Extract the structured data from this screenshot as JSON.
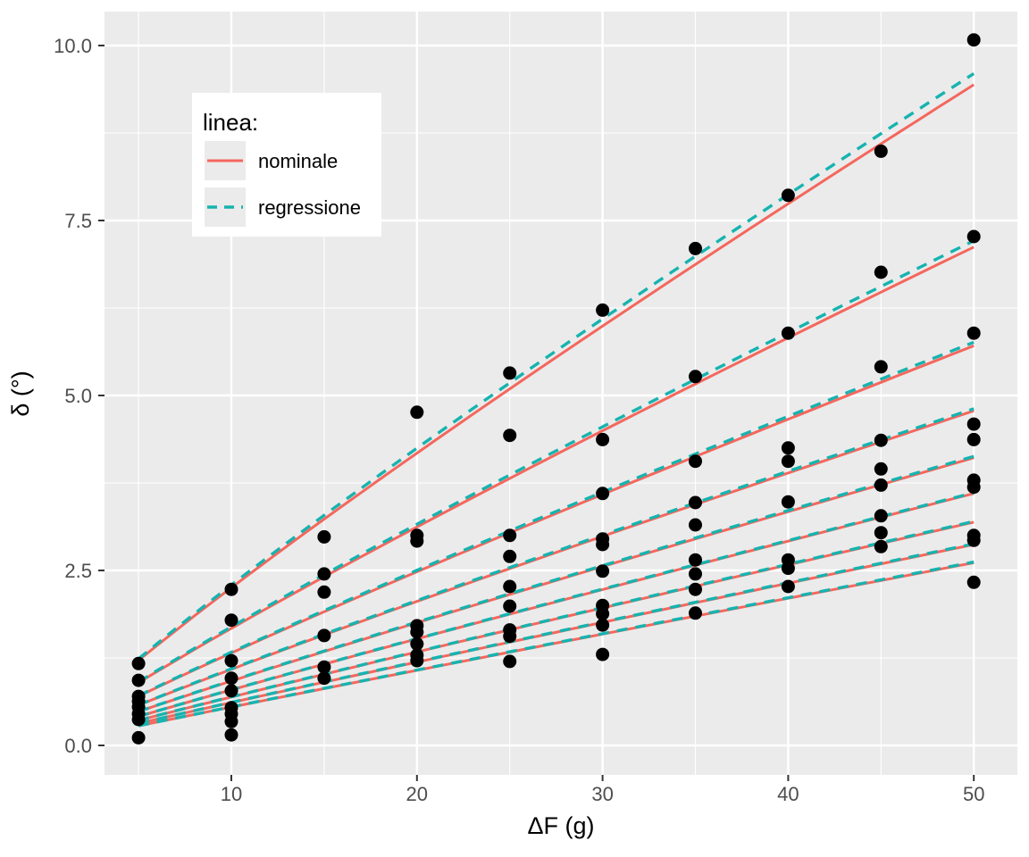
{
  "figure": {
    "background": "#FFFFFF",
    "panel_background": "#EBEBEB",
    "grid_color": "#FFFFFF",
    "axis_text_color": "#4D4D4D",
    "axis_title_color": "#000000",
    "tick_mark_color": "#333333",
    "point_color": "#000000"
  },
  "chart_data": {
    "type": "scatter+line",
    "title": "",
    "xlabel": "ΔF (g)",
    "ylabel": "δ (°)",
    "grid": "major+minor",
    "xlim": [
      3.2,
      52.3
    ],
    "ylim": [
      -0.42,
      10.48
    ],
    "x_ticks": [
      {
        "value": 10,
        "label": "10"
      },
      {
        "value": 20,
        "label": "20"
      },
      {
        "value": 30,
        "label": "30"
      },
      {
        "value": 40,
        "label": "40"
      },
      {
        "value": 50,
        "label": "50"
      }
    ],
    "x_minor_ticks": [
      5,
      15,
      25,
      35,
      45
    ],
    "y_ticks": [
      {
        "value": 0,
        "label": "0.0"
      },
      {
        "value": 2.5,
        "label": "2.5"
      },
      {
        "value": 5,
        "label": "5.0"
      },
      {
        "value": 7.5,
        "label": "7.5"
      },
      {
        "value": 10,
        "label": "10.0"
      }
    ],
    "y_minor_ticks": [
      1.25,
      3.75,
      6.25,
      8.75
    ],
    "legend": {
      "title": "linea:",
      "position": "inside-top-left",
      "entries": [
        {
          "label": "nominale",
          "line_style": "solid",
          "color": "#F4675D"
        },
        {
          "label": "regressione",
          "line_style": "dashed",
          "color": "#17B3AF"
        }
      ]
    },
    "curve_model": "delta(dF) = value_at_dF50 * (dF/50)^exponent, drawn for dF in [5,50]",
    "curve_pairs": [
      {
        "nominal_at_dF50": 9.44,
        "regression_at_dF50": 9.6,
        "exponent": 0.89
      },
      {
        "nominal_at_dF50": 7.12,
        "regression_at_dF50": 7.21,
        "exponent": 0.9
      },
      {
        "nominal_at_dF50": 5.71,
        "regression_at_dF50": 5.76,
        "exponent": 0.91
      },
      {
        "nominal_at_dF50": 4.78,
        "regression_at_dF50": 4.81,
        "exponent": 0.92
      },
      {
        "nominal_at_dF50": 4.11,
        "regression_at_dF50": 4.13,
        "exponent": 0.93
      },
      {
        "nominal_at_dF50": 3.6,
        "regression_at_dF50": 3.61,
        "exponent": 0.94
      },
      {
        "nominal_at_dF50": 3.19,
        "regression_at_dF50": 3.2,
        "exponent": 0.95
      },
      {
        "nominal_at_dF50": 2.87,
        "regression_at_dF50": 2.88,
        "exponent": 0.96
      },
      {
        "nominal_at_dF50": 2.61,
        "regression_at_dF50": 2.62,
        "exponent": 0.97
      }
    ],
    "points": [
      [
        5,
        1.17
      ],
      [
        5,
        0.93
      ],
      [
        5,
        0.7
      ],
      [
        5,
        0.63
      ],
      [
        5,
        0.55
      ],
      [
        5,
        0.45
      ],
      [
        5,
        0.37
      ],
      [
        5,
        0.11
      ],
      [
        10,
        2.23
      ],
      [
        10,
        1.79
      ],
      [
        10,
        1.21
      ],
      [
        10,
        0.96
      ],
      [
        10,
        0.78
      ],
      [
        10,
        0.54
      ],
      [
        10,
        0.45
      ],
      [
        10,
        0.34
      ],
      [
        10,
        0.15
      ],
      [
        15,
        2.98
      ],
      [
        15,
        2.45
      ],
      [
        15,
        2.19
      ],
      [
        15,
        1.57
      ],
      [
        15,
        1.12
      ],
      [
        15,
        0.96
      ],
      [
        20,
        4.76
      ],
      [
        20,
        3.0
      ],
      [
        20,
        2.92
      ],
      [
        20,
        1.71
      ],
      [
        20,
        1.62
      ],
      [
        20,
        1.45
      ],
      [
        20,
        1.29
      ],
      [
        20,
        1.21
      ],
      [
        25,
        5.32
      ],
      [
        25,
        4.43
      ],
      [
        25,
        3.0
      ],
      [
        25,
        2.7
      ],
      [
        25,
        2.27
      ],
      [
        25,
        1.99
      ],
      [
        25,
        1.65
      ],
      [
        25,
        1.56
      ],
      [
        25,
        1.2
      ],
      [
        30,
        6.22
      ],
      [
        30,
        4.37
      ],
      [
        30,
        3.6
      ],
      [
        30,
        2.95
      ],
      [
        30,
        2.87
      ],
      [
        30,
        2.49
      ],
      [
        30,
        2.0
      ],
      [
        30,
        1.88
      ],
      [
        30,
        1.72
      ],
      [
        30,
        1.3
      ],
      [
        35,
        7.1
      ],
      [
        35,
        5.27
      ],
      [
        35,
        4.06
      ],
      [
        35,
        3.47
      ],
      [
        35,
        3.15
      ],
      [
        35,
        2.65
      ],
      [
        35,
        2.45
      ],
      [
        35,
        2.23
      ],
      [
        35,
        1.89
      ],
      [
        40,
        7.86
      ],
      [
        40,
        5.89
      ],
      [
        40,
        4.25
      ],
      [
        40,
        4.06
      ],
      [
        40,
        3.48
      ],
      [
        40,
        2.65
      ],
      [
        40,
        2.53
      ],
      [
        40,
        2.27
      ],
      [
        45,
        8.49
      ],
      [
        45,
        6.76
      ],
      [
        45,
        5.41
      ],
      [
        45,
        4.36
      ],
      [
        45,
        3.95
      ],
      [
        45,
        3.72
      ],
      [
        45,
        3.28
      ],
      [
        45,
        3.04
      ],
      [
        45,
        2.84
      ],
      [
        50,
        10.08
      ],
      [
        50,
        7.27
      ],
      [
        50,
        5.89
      ],
      [
        50,
        4.59
      ],
      [
        50,
        4.37
      ],
      [
        50,
        3.79
      ],
      [
        50,
        3.69
      ],
      [
        50,
        3.0
      ],
      [
        50,
        2.93
      ],
      [
        50,
        2.33
      ]
    ]
  }
}
